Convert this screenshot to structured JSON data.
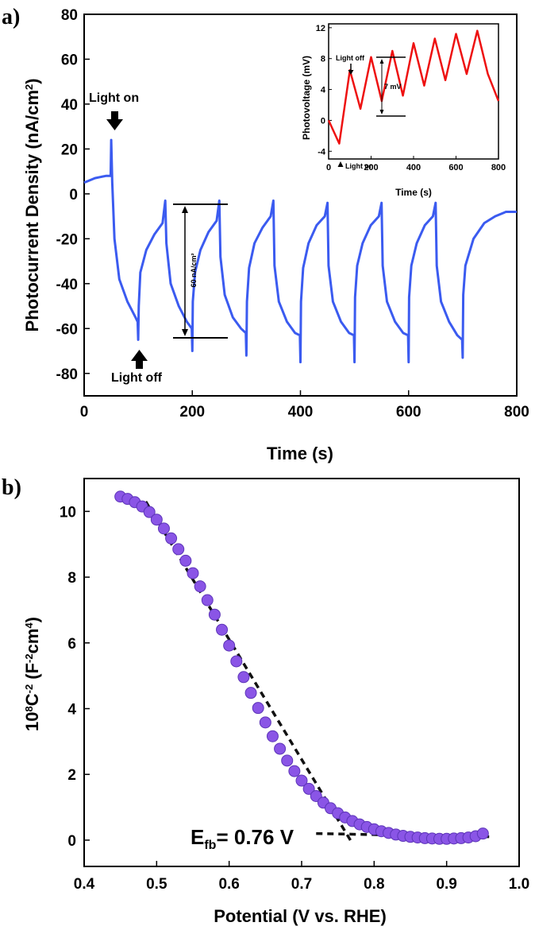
{
  "chart_data": [
    {
      "panel": "a)",
      "type": "line",
      "xlabel": "Time (s)",
      "ylabel_base": "Photocurrent Density (nA/cm",
      "ylabel_sup": "2",
      "ylabel_end": ")",
      "xlim": [
        0,
        800
      ],
      "ylim": [
        -90,
        80
      ],
      "xticks": [
        0,
        200,
        400,
        600,
        800
      ],
      "yticks": [
        80,
        60,
        40,
        20,
        0,
        -20,
        -40,
        -60,
        -80
      ],
      "series": [
        {
          "color": "#3b5bf0",
          "x": [
            0,
            20,
            40,
            49,
            50,
            52,
            56,
            65,
            80,
            95,
            99,
            100,
            101,
            104,
            115,
            130,
            145,
            150,
            152,
            160,
            175,
            190,
            199,
            200,
            201,
            205,
            215,
            230,
            245,
            250,
            252,
            260,
            275,
            290,
            299,
            300,
            301,
            305,
            315,
            330,
            345,
            350,
            352,
            360,
            375,
            390,
            399,
            400,
            401,
            405,
            415,
            430,
            445,
            450,
            452,
            460,
            475,
            490,
            499,
            500,
            501,
            505,
            515,
            530,
            545,
            550,
            552,
            560,
            575,
            590,
            599,
            600,
            601,
            605,
            615,
            630,
            645,
            650,
            652,
            660,
            675,
            690,
            699,
            700,
            701,
            705,
            720,
            740,
            760,
            780,
            800
          ],
          "y": [
            5,
            7,
            8,
            8,
            24,
            5,
            -20,
            -38,
            -48,
            -55,
            -57,
            -65,
            -50,
            -35,
            -25,
            -18,
            -13,
            -3,
            -22,
            -40,
            -50,
            -57,
            -60,
            -70,
            -48,
            -35,
            -25,
            -17,
            -12,
            -3,
            -28,
            -45,
            -55,
            -60,
            -62,
            -72,
            -48,
            -33,
            -22,
            -15,
            -10,
            -3,
            -32,
            -48,
            -57,
            -62,
            -63,
            -75,
            -48,
            -33,
            -22,
            -14,
            -10,
            -4,
            -32,
            -48,
            -57,
            -62,
            -63,
            -75,
            -46,
            -32,
            -22,
            -14,
            -10,
            -4,
            -32,
            -48,
            -57,
            -62,
            -63,
            -75,
            -46,
            -32,
            -22,
            -14,
            -10,
            -4,
            -32,
            -48,
            -57,
            -63,
            -65,
            -73,
            -45,
            -32,
            -20,
            -13,
            -10,
            -8,
            -8
          ]
        }
      ],
      "annotations": {
        "light_on": "Light on",
        "light_off": "Light off",
        "amplitude": "60 nA/cm²"
      },
      "inset": {
        "type": "line",
        "xlabel": "Time (s)",
        "ylabel": "Photovoltage (mV)",
        "xlim": [
          0,
          800
        ],
        "ylim": [
          -5,
          12.5
        ],
        "xticks": [
          0,
          200,
          400,
          600,
          800
        ],
        "yticks": [
          12,
          8,
          4,
          0,
          -4
        ],
        "light_off": "Light off",
        "light_on": "Light on",
        "amplitude": "7 mV",
        "series": [
          {
            "color": "#ee1111",
            "x": [
              0,
              50,
              100,
              150,
              200,
              250,
              300,
              350,
              400,
              450,
              500,
              550,
              600,
              650,
              700,
              750,
              800
            ],
            "y": [
              0,
              -3,
              6.5,
              1.5,
              8.2,
              2.5,
              9,
              3.2,
              10,
              4.5,
              10.6,
              5.2,
              11.2,
              6,
              11.6,
              6,
              2.5
            ]
          }
        ]
      }
    },
    {
      "panel": "b)",
      "type": "scatter",
      "xlabel": "Potential  (V vs. RHE)",
      "ylabel_pre": "10",
      "ylabel_sup1": "8",
      "ylabel_mid": "C",
      "ylabel_sup2": "-2",
      "ylabel_paren": " (F",
      "ylabel_sup3": "-2",
      "ylabel_cm": "cm",
      "ylabel_sup4": "4",
      "ylabel_end": ")",
      "xlim": [
        0.4,
        1.0
      ],
      "ylim": [
        -0.8,
        11
      ],
      "xticks": [
        "0.4",
        "0.5",
        "0.6",
        "0.7",
        "0.8",
        "0.9",
        "1.0"
      ],
      "yticks": [
        "0",
        "2",
        "4",
        "6",
        "8",
        "10"
      ],
      "fit_label_main": "E",
      "fit_label_sub": "fb",
      "fit_label_value": "= 0.76 V",
      "marker_color": "#8a55e6",
      "line_color": "#111111",
      "x": [
        0.45,
        0.46,
        0.47,
        0.48,
        0.49,
        0.5,
        0.51,
        0.52,
        0.53,
        0.54,
        0.55,
        0.56,
        0.57,
        0.58,
        0.59,
        0.6,
        0.61,
        0.62,
        0.63,
        0.64,
        0.65,
        0.66,
        0.67,
        0.68,
        0.69,
        0.7,
        0.71,
        0.72,
        0.73,
        0.74,
        0.75,
        0.76,
        0.77,
        0.78,
        0.79,
        0.8,
        0.81,
        0.82,
        0.83,
        0.84,
        0.85,
        0.86,
        0.87,
        0.88,
        0.89,
        0.9,
        0.91,
        0.92,
        0.93,
        0.94,
        0.95
      ],
      "y": [
        10.45,
        10.38,
        10.28,
        10.15,
        9.98,
        9.75,
        9.48,
        9.18,
        8.85,
        8.5,
        8.12,
        7.72,
        7.3,
        6.86,
        6.4,
        5.92,
        5.44,
        4.96,
        4.48,
        4.02,
        3.58,
        3.16,
        2.78,
        2.42,
        2.1,
        1.81,
        1.56,
        1.34,
        1.14,
        0.97,
        0.82,
        0.69,
        0.58,
        0.48,
        0.4,
        0.33,
        0.27,
        0.22,
        0.17,
        0.13,
        0.1,
        0.08,
        0.06,
        0.05,
        0.04,
        0.04,
        0.05,
        0.06,
        0.08,
        0.12,
        0.2
      ],
      "fit_lines": [
        {
          "x": [
            0.485,
            0.77
          ],
          "y": [
            10.3,
            -0.1
          ]
        },
        {
          "x": [
            0.72,
            0.965
          ],
          "y": [
            0.2,
            0.1
          ]
        }
      ]
    }
  ]
}
